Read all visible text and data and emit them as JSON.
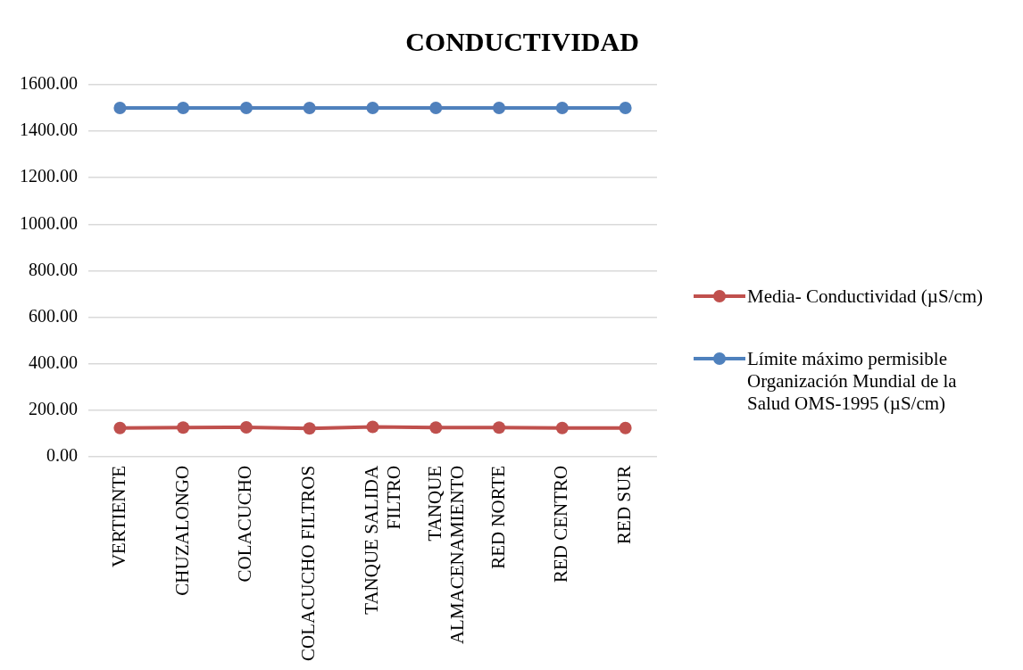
{
  "chart_data": {
    "type": "line",
    "title": "CONDUCTIVIDAD",
    "categories": [
      "VERTIENTE",
      "CHUZALONGO",
      "COLACUCHO",
      "COLACUCHO FILTROS",
      "TANQUE SALIDA FILTRO",
      "TANQUE ALMACENAMIENTO",
      "RED NORTE",
      "RED CENTRO",
      "RED SUR"
    ],
    "series": [
      {
        "name": "Media- Conductividad (µS/cm)",
        "color": "#c0504d",
        "values": [
          123,
          125,
          126,
          121,
          128,
          125,
          125,
          123,
          123
        ]
      },
      {
        "name": "Límite máximo permisible Organización Mundial de la Salud OMS-1995  (µS/cm)",
        "color": "#4f81bd",
        "values": [
          1500,
          1500,
          1500,
          1500,
          1500,
          1500,
          1500,
          1500,
          1500
        ]
      }
    ],
    "ylim": [
      0,
      1600
    ],
    "yticks": [
      {
        "value": 0,
        "label": "0.00"
      },
      {
        "value": 200,
        "label": "200.00"
      },
      {
        "value": 400,
        "label": "400.00"
      },
      {
        "value": 600,
        "label": "600.00"
      },
      {
        "value": 800,
        "label": "800.00"
      },
      {
        "value": 1000,
        "label": "1000.00"
      },
      {
        "value": 1200,
        "label": "1200.00"
      },
      {
        "value": 1400,
        "label": "1400.00"
      },
      {
        "value": 1600,
        "label": "1600.00"
      }
    ],
    "grid": "y",
    "legend": "right",
    "marker": "circle",
    "line_style": "solid"
  }
}
